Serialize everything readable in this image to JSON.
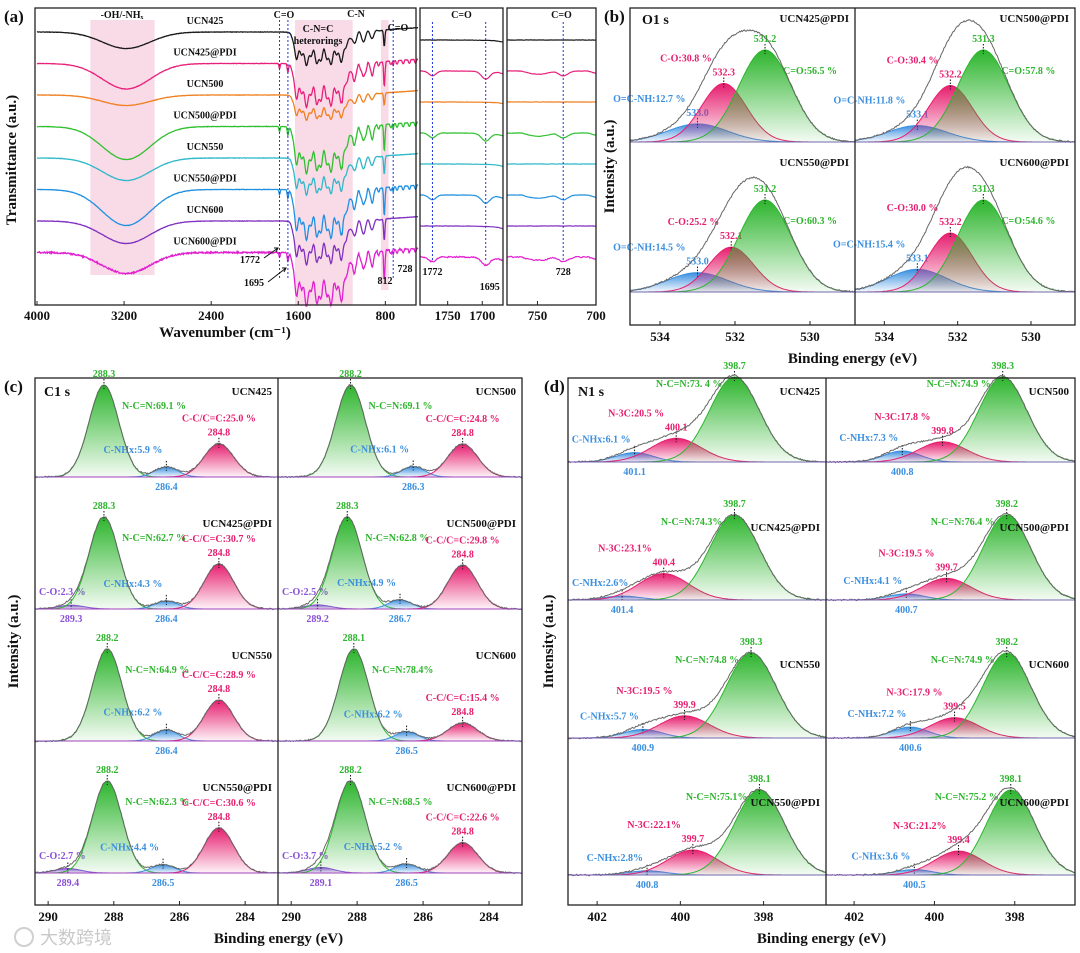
{
  "watermark": "大数跨境",
  "chart_data": [
    {
      "type": "line",
      "panel": "(a)",
      "xlabel": "Wavenumber (cm⁻¹)",
      "ylabel": "Transmittance (a.u.)",
      "xlim": [
        4000,
        500
      ],
      "ticks": [
        "4000",
        "3200",
        "2400",
        "1600",
        "800"
      ],
      "regions": [
        [
          3510,
          2920
        ],
        [
          1630,
          1100
        ],
        [
          840,
          770
        ]
      ],
      "annotations": {
        "oh": "-OH/-NHₓ",
        "co1": "C=O",
        "cnc1": "C-N=C",
        "cnc2": "heterorings",
        "cn": "C-N",
        "co2": "C=O",
        "w1772": "1772",
        "w1695": "1695",
        "w812": "812",
        "w728": "728"
      },
      "series": [
        {
          "name": "UCN425",
          "color": "#1a1a1a",
          "oh": 0.55,
          "ring": 1.0,
          "pdi": false
        },
        {
          "name": "UCN425@PDI",
          "color": "#e8207a",
          "oh": 0.85,
          "ring": 1.3,
          "pdi": true
        },
        {
          "name": "UCN500",
          "color": "#f08020",
          "oh": 0.35,
          "ring": 0.75,
          "pdi": false
        },
        {
          "name": "UCN500@PDI",
          "color": "#30c030",
          "oh": 1.1,
          "ring": 1.4,
          "pdi": true
        },
        {
          "name": "UCN550",
          "color": "#30b8c8",
          "oh": 0.75,
          "ring": 1.1,
          "pdi": false
        },
        {
          "name": "UCN550@PDI",
          "color": "#2090e0",
          "oh": 1.2,
          "ring": 1.5,
          "pdi": true
        },
        {
          "name": "UCN600",
          "color": "#8030c0",
          "oh": 0.75,
          "ring": 1.3,
          "pdi": false
        },
        {
          "name": "UCN600@PDI",
          "color": "#e020d0",
          "oh": 0.7,
          "ring": 1.6,
          "pdi": true
        }
      ],
      "inset1": {
        "xlim": [
          1790,
          1670
        ],
        "ticks": [
          "1750",
          "1700"
        ],
        "title": "C=O",
        "lines": [
          1772,
          1695
        ],
        "labels": [
          "1772",
          "1695"
        ]
      },
      "inset2": {
        "xlim": [
          776,
          700
        ],
        "ticks": [
          "750",
          "700"
        ],
        "title": "C=O",
        "lines": [
          728
        ],
        "labels": [
          "728"
        ]
      }
    },
    {
      "type": "area",
      "panel": "(b)",
      "title": "O1 s",
      "xlabel": "Binding energy (eV)",
      "ylabel": "Intensity (a.u.)",
      "xlim": [
        534.8,
        528.8
      ],
      "ticks": [
        "534",
        "532",
        "530"
      ],
      "spectra": [
        {
          "name": "UCN425@PDI",
          "peaks": [
            {
              "e": "533.0",
              "text": "O=C-NH:12.7 %",
              "pct": 12.7,
              "sigma": 0.8,
              "color": "#3a8fe0"
            },
            {
              "e": "532.3",
              "text": "C-O:30.8 %",
              "pct": 30.8,
              "sigma": 0.6,
              "color": "#e61e6e"
            },
            {
              "e": "531.2",
              "text": "C=O:56.5 %",
              "pct": 56.5,
              "sigma": 0.7,
              "color": "#2db52d"
            }
          ]
        },
        {
          "name": "UCN500@PDI",
          "peaks": [
            {
              "e": "533.1",
              "text": "O=C-NH:11.8 %",
              "pct": 11.8,
              "sigma": 0.8,
              "color": "#3a8fe0"
            },
            {
              "e": "532.2",
              "text": "C-O:30.4 %",
              "pct": 30.4,
              "sigma": 0.6,
              "color": "#e61e6e"
            },
            {
              "e": "531.3",
              "text": "C=O:57.8 %",
              "pct": 57.8,
              "sigma": 0.7,
              "color": "#2db52d"
            }
          ]
        },
        {
          "name": "UCN550@PDI",
          "peaks": [
            {
              "e": "533.0",
              "text": "O=C-NH:14.5 %",
              "pct": 14.5,
              "sigma": 0.8,
              "color": "#3a8fe0"
            },
            {
              "e": "532.1",
              "text": "C-O:25.2 %",
              "pct": 25.2,
              "sigma": 0.6,
              "color": "#e61e6e"
            },
            {
              "e": "531.2",
              "text": "C=O:60.3 %",
              "pct": 60.3,
              "sigma": 0.7,
              "color": "#2db52d"
            }
          ]
        },
        {
          "name": "UCN600@PDI",
          "peaks": [
            {
              "e": "533.1",
              "text": "O=C-NH:15.4 %",
              "pct": 15.4,
              "sigma": 0.8,
              "color": "#3a8fe0"
            },
            {
              "e": "532.2",
              "text": "C-O:30.0 %",
              "pct": 30.0,
              "sigma": 0.6,
              "color": "#e61e6e"
            },
            {
              "e": "531.3",
              "text": "C=O:54.6 %",
              "pct": 54.6,
              "sigma": 0.7,
              "color": "#2db52d"
            }
          ]
        }
      ]
    },
    {
      "type": "area",
      "panel": "(c)",
      "title": "C1 s",
      "xlabel": "Binding energy (eV)",
      "ylabel": "Intensity (a.u.)",
      "xlim": [
        290.4,
        283.0
      ],
      "ticks": [
        "290",
        "288",
        "286",
        "284"
      ],
      "spectra": [
        {
          "name": "UCN425",
          "peaks": [
            {
              "e": "288.3",
              "text": "N-C=N:69.1 %",
              "pct": 69.1,
              "sigma": 0.45,
              "color": "#2db52d"
            },
            {
              "e": "286.4",
              "text": "C-NHx:5.9 %",
              "pct": 5.9,
              "sigma": 0.35,
              "color": "#3a8fe0"
            },
            {
              "e": "284.8",
              "text": "C-C/C=C:25.0 %",
              "pct": 25.0,
              "sigma": 0.45,
              "color": "#e61e6e"
            }
          ]
        },
        {
          "name": "UCN425@PDI",
          "peaks": [
            {
              "e": "289.3",
              "text": "C-O:2.3 %",
              "pct": 2.3,
              "sigma": 0.4,
              "color": "#8a50d8"
            },
            {
              "e": "288.3",
              "text": "N-C=N:62.7 %",
              "pct": 62.7,
              "sigma": 0.45,
              "color": "#2db52d"
            },
            {
              "e": "286.4",
              "text": "C-NHx:4.3 %",
              "pct": 4.3,
              "sigma": 0.35,
              "color": "#3a8fe0"
            },
            {
              "e": "284.8",
              "text": "C-C/C=C:30.7 %",
              "pct": 30.7,
              "sigma": 0.45,
              "color": "#e61e6e"
            }
          ]
        },
        {
          "name": "UCN550",
          "peaks": [
            {
              "e": "288.2",
              "text": "N-C=N:64.9 %",
              "pct": 64.9,
              "sigma": 0.45,
              "color": "#2db52d"
            },
            {
              "e": "286.4",
              "text": "C-NHx:6.2 %",
              "pct": 6.2,
              "sigma": 0.35,
              "color": "#3a8fe0"
            },
            {
              "e": "284.8",
              "text": "C-C/C=C:28.9 %",
              "pct": 28.9,
              "sigma": 0.45,
              "color": "#e61e6e"
            }
          ]
        },
        {
          "name": "UCN550@PDI",
          "peaks": [
            {
              "e": "289.4",
              "text": "C-O:2.7 %",
              "pct": 2.7,
              "sigma": 0.4,
              "color": "#8a50d8"
            },
            {
              "e": "288.2",
              "text": "N-C=N:62.3 %",
              "pct": 62.3,
              "sigma": 0.45,
              "color": "#2db52d"
            },
            {
              "e": "286.5",
              "text": "C-NHx:4.4 %",
              "pct": 4.4,
              "sigma": 0.35,
              "color": "#3a8fe0"
            },
            {
              "e": "284.8",
              "text": "C-C/C=C:30.6 %",
              "pct": 30.6,
              "sigma": 0.45,
              "color": "#e61e6e"
            }
          ]
        },
        {
          "name": "UCN500",
          "peaks": [
            {
              "e": "288.2",
              "text": "N-C=N:69.1 %",
              "pct": 69.1,
              "sigma": 0.45,
              "color": "#2db52d"
            },
            {
              "e": "286.3",
              "text": "C-NHx:6.1 %",
              "pct": 6.1,
              "sigma": 0.35,
              "color": "#3a8fe0"
            },
            {
              "e": "284.8",
              "text": "C-C/C=C:24.8 %",
              "pct": 24.8,
              "sigma": 0.45,
              "color": "#e61e6e"
            }
          ]
        },
        {
          "name": "UCN500@PDI",
          "peaks": [
            {
              "e": "289.2",
              "text": "C-O:2.5 %",
              "pct": 2.5,
              "sigma": 0.4,
              "color": "#8a50d8"
            },
            {
              "e": "288.3",
              "text": "N-C=N:62.8 %",
              "pct": 62.8,
              "sigma": 0.45,
              "color": "#2db52d"
            },
            {
              "e": "286.7",
              "text": "C-NHx:4.9 %",
              "pct": 4.9,
              "sigma": 0.35,
              "color": "#3a8fe0"
            },
            {
              "e": "284.8",
              "text": "C-C/C=C:29.8 %",
              "pct": 29.8,
              "sigma": 0.45,
              "color": "#e61e6e"
            }
          ]
        },
        {
          "name": "UCN600",
          "peaks": [
            {
              "e": "288.1",
              "text": "N-C=N:78.4%",
              "pct": 78.4,
              "sigma": 0.45,
              "color": "#2db52d"
            },
            {
              "e": "286.5",
              "text": "C-NHx:6.2 %",
              "pct": 6.2,
              "sigma": 0.35,
              "color": "#3a8fe0"
            },
            {
              "e": "284.8",
              "text": "C-C/C=C:15.4 %",
              "pct": 15.4,
              "sigma": 0.45,
              "color": "#e61e6e"
            }
          ]
        },
        {
          "name": "UCN600@PDI",
          "peaks": [
            {
              "e": "289.1",
              "text": "C-O:3.7 %",
              "pct": 3.7,
              "sigma": 0.4,
              "color": "#8a50d8"
            },
            {
              "e": "288.2",
              "text": "N-C=N:68.5 %",
              "pct": 68.5,
              "sigma": 0.45,
              "color": "#2db52d"
            },
            {
              "e": "286.5",
              "text": "C-NHx:5.2 %",
              "pct": 5.2,
              "sigma": 0.35,
              "color": "#3a8fe0"
            },
            {
              "e": "284.8",
              "text": "C-C/C=C:22.6 %",
              "pct": 22.6,
              "sigma": 0.45,
              "color": "#e61e6e"
            }
          ]
        }
      ]
    },
    {
      "type": "area",
      "panel": "(d)",
      "title": "N1 s",
      "xlabel": "Binding energy (eV)",
      "ylabel": "Intensity (a.u.)",
      "xlim": [
        402.7,
        396.5
      ],
      "ticks": [
        "402",
        "400",
        "398"
      ],
      "spectra": [
        {
          "name": "UCN425",
          "peaks": [
            {
              "e": "401.1",
              "text": "C-NHx:6.1 %",
              "pct": 6.1,
              "sigma": 0.45,
              "color": "#3a8fe0"
            },
            {
              "e": "400.1",
              "text": "N-3C:20.5 %",
              "pct": 20.5,
              "sigma": 0.6,
              "color": "#e61e6e"
            },
            {
              "e": "398.7",
              "text": "N-C=N:73. 4 %",
              "pct": 73.4,
              "sigma": 0.6,
              "color": "#2db52d"
            }
          ]
        },
        {
          "name": "UCN425@PDI",
          "peaks": [
            {
              "e": "401.4",
              "text": "C-NHx:2.6%",
              "pct": 2.6,
              "sigma": 0.45,
              "color": "#3a8fe0"
            },
            {
              "e": "400.4",
              "text": "N-3C:23.1%",
              "pct": 23.1,
              "sigma": 0.6,
              "color": "#e61e6e"
            },
            {
              "e": "398.7",
              "text": "N-C=N:74.3%",
              "pct": 74.3,
              "sigma": 0.6,
              "color": "#2db52d"
            }
          ]
        },
        {
          "name": "UCN550",
          "peaks": [
            {
              "e": "400.9",
              "text": "C-NHx:5.7 %",
              "pct": 5.7,
              "sigma": 0.45,
              "color": "#3a8fe0"
            },
            {
              "e": "399.9",
              "text": "N-3C:19.5 %",
              "pct": 19.5,
              "sigma": 0.6,
              "color": "#e61e6e"
            },
            {
              "e": "398.3",
              "text": "N-C=N:74.8 %",
              "pct": 74.8,
              "sigma": 0.6,
              "color": "#2db52d"
            }
          ]
        },
        {
          "name": "UCN550@PDI",
          "peaks": [
            {
              "e": "400.8",
              "text": "C-NHx:2.8%",
              "pct": 2.8,
              "sigma": 0.45,
              "color": "#3a8fe0"
            },
            {
              "e": "399.7",
              "text": "N-3C:22.1%",
              "pct": 22.1,
              "sigma": 0.6,
              "color": "#e61e6e"
            },
            {
              "e": "398.1",
              "text": "N-C=N:75.1%",
              "pct": 75.1,
              "sigma": 0.6,
              "color": "#2db52d"
            }
          ]
        },
        {
          "name": "UCN500",
          "peaks": [
            {
              "e": "400.8",
              "text": "C-NHx:7.3 %",
              "pct": 7.3,
              "sigma": 0.45,
              "color": "#3a8fe0"
            },
            {
              "e": "399.8",
              "text": "N-3C:17.8 %",
              "pct": 17.8,
              "sigma": 0.6,
              "color": "#e61e6e"
            },
            {
              "e": "398.3",
              "text": "N-C=N:74.9 %",
              "pct": 74.9,
              "sigma": 0.6,
              "color": "#2db52d"
            }
          ]
        },
        {
          "name": "UCN500@PDI",
          "peaks": [
            {
              "e": "400.7",
              "text": "C-NHx:4.1 %",
              "pct": 4.1,
              "sigma": 0.45,
              "color": "#3a8fe0"
            },
            {
              "e": "399.7",
              "text": "N-3C:19.5 %",
              "pct": 19.5,
              "sigma": 0.6,
              "color": "#e61e6e"
            },
            {
              "e": "398.2",
              "text": "N-C=N:76.4 %",
              "pct": 76.4,
              "sigma": 0.6,
              "color": "#2db52d"
            }
          ]
        },
        {
          "name": "UCN600",
          "peaks": [
            {
              "e": "400.6",
              "text": "C-NHx:7.2 %",
              "pct": 7.2,
              "sigma": 0.45,
              "color": "#3a8fe0"
            },
            {
              "e": "399.5",
              "text": "N-3C:17.9 %",
              "pct": 17.9,
              "sigma": 0.6,
              "color": "#e61e6e"
            },
            {
              "e": "398.2",
              "text": "N-C=N:74.9 %",
              "pct": 74.9,
              "sigma": 0.6,
              "color": "#2db52d"
            }
          ]
        },
        {
          "name": "UCN600@PDI",
          "peaks": [
            {
              "e": "400.5",
              "text": "C-NHx:3.6 %",
              "pct": 3.6,
              "sigma": 0.45,
              "color": "#3a8fe0"
            },
            {
              "e": "399.4",
              "text": "N-3C:21.2%",
              "pct": 21.2,
              "sigma": 0.6,
              "color": "#e61e6e"
            },
            {
              "e": "398.1",
              "text": "N-C=N:75.2 %",
              "pct": 75.2,
              "sigma": 0.6,
              "color": "#2db52d"
            }
          ]
        }
      ]
    }
  ]
}
